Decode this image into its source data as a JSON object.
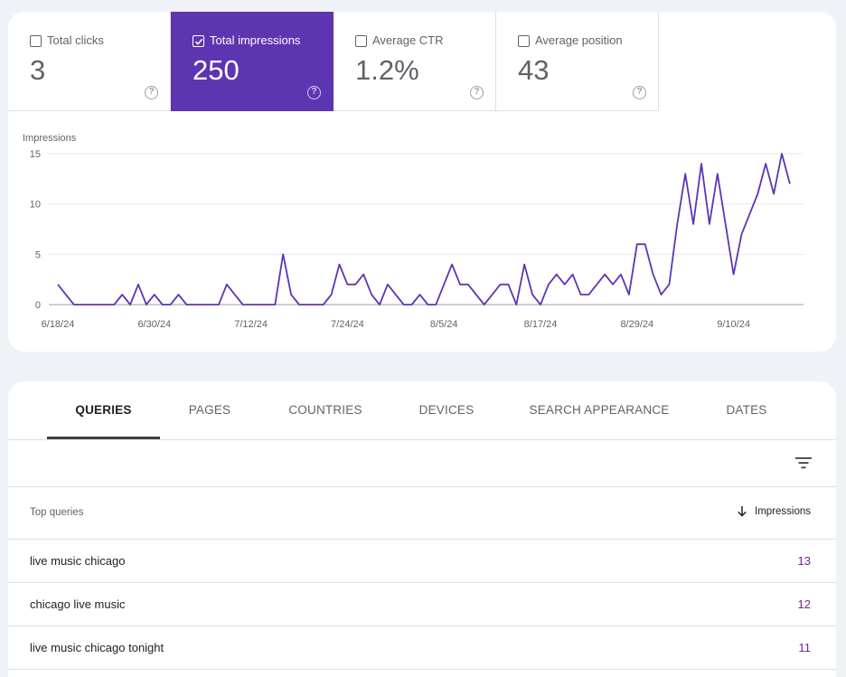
{
  "metrics": [
    {
      "label": "Total clicks",
      "value": "3",
      "checked": false
    },
    {
      "label": "Total impressions",
      "value": "250",
      "checked": true
    },
    {
      "label": "Average CTR",
      "value": "1.2%",
      "checked": false
    },
    {
      "label": "Average position",
      "value": "43",
      "checked": false
    }
  ],
  "help_glyph": "?",
  "chart_data": {
    "type": "line",
    "ylabel": "Impressions",
    "ylim": [
      0,
      15
    ],
    "yticks": [
      "0",
      "5",
      "10",
      "15"
    ],
    "x_tick_labels": [
      "6/18/24",
      "6/30/24",
      "7/12/24",
      "7/24/24",
      "8/5/24",
      "8/17/24",
      "8/29/24",
      "9/10/24"
    ],
    "grid": true,
    "color": "#5e35b1",
    "series": [
      {
        "values": [
          2,
          1,
          0,
          0,
          0,
          0,
          0,
          0,
          1,
          0,
          2,
          0,
          1,
          0,
          0,
          1,
          0,
          0,
          0,
          0,
          0,
          2,
          1,
          0,
          0,
          0,
          0,
          0,
          5,
          1,
          0,
          0,
          0,
          0,
          1,
          4,
          2,
          2,
          3,
          1,
          0,
          2,
          1,
          0,
          0,
          1,
          0,
          0,
          2,
          4,
          2,
          2,
          1,
          0,
          1,
          2,
          2,
          0,
          4,
          1,
          0,
          2,
          3,
          2,
          3,
          1,
          1,
          2,
          3,
          2,
          3,
          1,
          6,
          6,
          3,
          1,
          2,
          8,
          13,
          8,
          14,
          8,
          13,
          8,
          3,
          7,
          9,
          11,
          14,
          11,
          15,
          12
        ]
      }
    ]
  },
  "tabs": [
    "QUERIES",
    "PAGES",
    "COUNTRIES",
    "DEVICES",
    "SEARCH APPEARANCE",
    "DATES"
  ],
  "active_tab": "QUERIES",
  "table": {
    "col_query": "Top queries",
    "col_impressions": "Impressions",
    "rows": [
      {
        "query": "live music chicago",
        "impressions": "13"
      },
      {
        "query": "chicago live music",
        "impressions": "12"
      },
      {
        "query": "live music chicago tonight",
        "impressions": "11"
      }
    ]
  }
}
